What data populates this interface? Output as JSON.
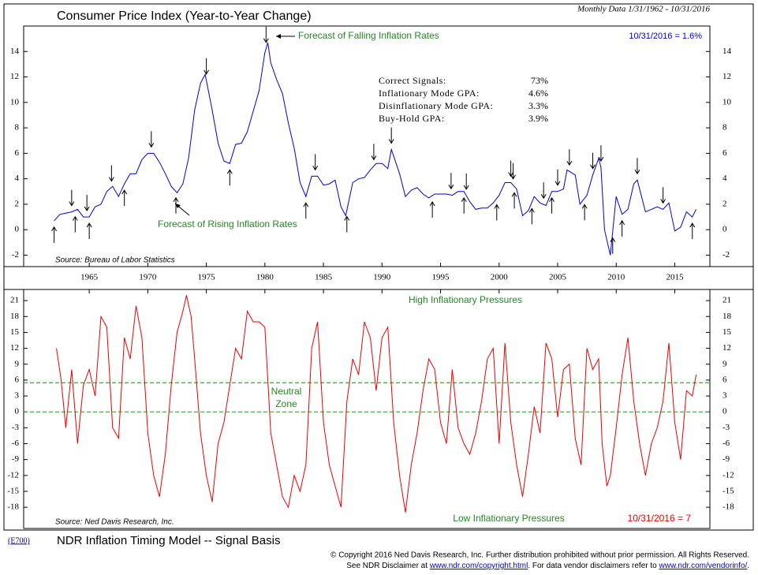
{
  "chart_data": [
    {
      "type": "line",
      "title": "Consumer Price Index (Year-to-Year Change)",
      "subtitle": "Monthly Data 1/31/1962 - 10/31/2016",
      "latest_label": "10/31/2016 = 1.6%",
      "annotation_falling": "Forecast of Falling Inflation Rates",
      "annotation_rising": "Forecast of Rising Inflation Rates",
      "source": "Source: Bureau of Labor Statistics",
      "stats_labels": [
        "Correct Signals:",
        "Inflationary Mode GPA:",
        "Disinflationary Mode GPA:",
        "Buy-Hold GPA:"
      ],
      "stats_values": [
        73,
        4.6,
        3.3,
        3.9
      ],
      "stats_value_labels": [
        "73%",
        "4.6%",
        "3.3%",
        "3.9%"
      ],
      "color": "#0000dd",
      "xlim": [
        1959.4,
        2018
      ],
      "xticks": [
        1965,
        1970,
        1975,
        1980,
        1985,
        1990,
        1995,
        2000,
        2005,
        2010,
        2015
      ],
      "ylim": [
        -2.9,
        16
      ],
      "yticks": [
        14,
        12,
        10,
        8,
        6,
        4,
        2,
        0,
        -2
      ],
      "x": [
        1962.0,
        1962.5,
        1963,
        1963.5,
        1964,
        1964.5,
        1965,
        1965.5,
        1966,
        1966.5,
        1967,
        1967.5,
        1968,
        1968.5,
        1969,
        1969.5,
        1970,
        1970.5,
        1971,
        1971.5,
        1972,
        1972.5,
        1973,
        1973.5,
        1974,
        1974.5,
        1974.9,
        1975.5,
        1976,
        1976.5,
        1977,
        1977.5,
        1978,
        1978.5,
        1979,
        1979.5,
        1980,
        1980.25,
        1980.5,
        1981,
        1981.5,
        1982,
        1982.5,
        1983,
        1983.5,
        1984,
        1984.5,
        1985,
        1985.5,
        1986,
        1986.5,
        1986.9,
        1987.5,
        1988,
        1988.5,
        1989,
        1989.5,
        1990,
        1990.5,
        1990.8,
        1991.5,
        1992,
        1992.5,
        1993,
        1993.5,
        1994,
        1994.5,
        1995,
        1995.5,
        1996,
        1996.5,
        1997,
        1997.5,
        1998,
        1998.5,
        1999,
        1999.5,
        2000,
        2000.5,
        2001,
        2001.5,
        2002,
        2002.5,
        2003,
        2003.5,
        2004,
        2004.5,
        2005,
        2005.5,
        2005.8,
        2006.5,
        2006.9,
        2007.5,
        2008,
        2008.5,
        2008.7,
        2009,
        2009.5,
        2010,
        2010.5,
        2011,
        2011.5,
        2011.8,
        2012.5,
        2013,
        2013.5,
        2014,
        2014.5,
        2015,
        2015.5,
        2016,
        2016.5,
        2016.83
      ],
      "values": [
        0.7,
        1.2,
        1.3,
        1.4,
        1.6,
        1.0,
        1.0,
        1.8,
        2.0,
        3.0,
        3.4,
        2.6,
        3.6,
        4.4,
        4.4,
        5.5,
        6.0,
        6.0,
        5.3,
        4.4,
        3.4,
        2.9,
        3.6,
        5.7,
        9.4,
        11.5,
        12.2,
        9.4,
        6.8,
        5.4,
        5.2,
        6.7,
        6.8,
        7.7,
        9.3,
        10.9,
        13.9,
        14.7,
        13.1,
        11.8,
        10.7,
        8.4,
        6.4,
        3.7,
        2.6,
        4.2,
        4.2,
        3.5,
        3.6,
        3.9,
        1.8,
        1.1,
        3.7,
        4.0,
        4.1,
        4.7,
        5.2,
        5.2,
        4.8,
        6.3,
        4.4,
        2.6,
        3.1,
        3.3,
        2.8,
        2.5,
        2.8,
        2.8,
        2.8,
        2.7,
        3.0,
        3.0,
        2.2,
        1.6,
        1.7,
        1.7,
        2.1,
        2.7,
        3.7,
        3.7,
        3.2,
        1.1,
        1.5,
        2.6,
        2.1,
        1.9,
        3.0,
        3.0,
        3.2,
        4.7,
        4.3,
        2.0,
        2.7,
        4.3,
        5.6,
        4.9,
        0.0,
        -2.0,
        2.6,
        1.2,
        1.6,
        3.6,
        3.9,
        1.4,
        1.6,
        1.8,
        1.6,
        2.1,
        -0.1,
        0.2,
        1.4,
        1.0,
        1.6
      ],
      "sell_signals": [
        1963.5,
        1964.8,
        1966.9,
        1970.3,
        1975.0,
        1980.1,
        1984.3,
        1989.3,
        1990.8,
        1995.9,
        1997.2,
        2001.0,
        2001.2,
        2003.8,
        2005.0,
        2006.0,
        2008.0,
        2008.7,
        2011.8,
        2014.0
      ],
      "buy_signals": [
        1962.0,
        1963.8,
        1965.0,
        1968.0,
        1972.4,
        1977.0,
        1983.5,
        1987.0,
        1994.3,
        1997.0,
        1999.8,
        2001.3,
        2002.8,
        2004.5,
        2007.3,
        2009.7,
        2010.5,
        2016.5
      ]
    },
    {
      "type": "line",
      "annotation_high": "High Inflationary Pressures",
      "annotation_neutral": [
        "Neutral",
        "Zone"
      ],
      "annotation_low": "Low Inflationary Pressures",
      "latest_label": "10/31/2016 = 7",
      "source": "Source: Ned Davis Research, Inc.",
      "color": "#ee0000",
      "zone_color": "#33aa33",
      "neutral_zone": [
        0,
        5.5
      ],
      "xlim": [
        1959.4,
        2018
      ],
      "ylim": [
        -22,
        23.1
      ],
      "yticks": [
        21,
        18,
        15,
        12,
        9,
        6,
        3,
        0,
        -3,
        -6,
        -9,
        -12,
        -15,
        -18
      ],
      "x": [
        1962.2,
        1962.6,
        1963,
        1963.5,
        1964,
        1964.5,
        1965,
        1965.5,
        1966,
        1966.5,
        1967,
        1967.5,
        1968,
        1968.5,
        1969,
        1969.5,
        1970,
        1970.5,
        1971,
        1971.5,
        1972,
        1972.5,
        1973,
        1973.3,
        1973.7,
        1974,
        1974.5,
        1975,
        1975.5,
        1976,
        1976.5,
        1977,
        1977.5,
        1978,
        1978.5,
        1979,
        1979.5,
        1980,
        1980.5,
        1981,
        1981.5,
        1982,
        1982.5,
        1983,
        1983.5,
        1984,
        1984.5,
        1985,
        1985.5,
        1986,
        1986.5,
        1987,
        1987.5,
        1988,
        1988.5,
        1989,
        1989.5,
        1990,
        1990.5,
        1991,
        1991.5,
        1992,
        1992.5,
        1993,
        1993.5,
        1994,
        1994.5,
        1995,
        1995.5,
        1996,
        1996.5,
        1997,
        1997.5,
        1998,
        1998.5,
        1999,
        1999.5,
        2000,
        2000.5,
        2001,
        2001.5,
        2002,
        2002.5,
        2003,
        2003.5,
        2004,
        2004.5,
        2005,
        2005.5,
        2006,
        2006.5,
        2007,
        2007.5,
        2008,
        2008.5,
        2008.8,
        2009.2,
        2009.5,
        2010,
        2010.5,
        2011,
        2011.5,
        2012,
        2012.5,
        2013,
        2013.5,
        2014,
        2014.5,
        2015,
        2015.5,
        2016,
        2016.5,
        2016.83
      ],
      "values": [
        12,
        6,
        -3,
        8,
        -6,
        5,
        8,
        3,
        18,
        16,
        -3,
        -5,
        14,
        10,
        20,
        14,
        -4,
        -12,
        -16,
        -8,
        5,
        15,
        19,
        22,
        18,
        10,
        -4,
        -12,
        -17,
        -6,
        -2,
        5,
        12,
        10,
        19,
        17,
        17,
        16,
        -4,
        -10,
        -16,
        -18,
        -12,
        -15,
        -10,
        12,
        17,
        -2,
        -10,
        -14,
        -18,
        2,
        10,
        7,
        17,
        14,
        4,
        14,
        16,
        -2,
        -12,
        -19,
        -10,
        -4,
        4,
        10,
        8,
        -2,
        -6,
        8,
        -3,
        -6,
        -8,
        -4,
        2,
        10,
        12,
        -6,
        13,
        -2,
        -10,
        -16,
        -8,
        1,
        -4,
        13,
        10,
        -1,
        8,
        9,
        -5,
        -10,
        12,
        8,
        10,
        -6,
        -14,
        -12,
        -3,
        7,
        14,
        2,
        -6,
        -12,
        -6,
        -3,
        2,
        13,
        -2,
        -9,
        4,
        3,
        7
      ]
    }
  ],
  "footer": {
    "code": "(E700)",
    "title": "NDR Inflation Timing Model -- Signal Basis",
    "copyright": "© Copyright 2016 Ned Davis Research, Inc.  Further distribution prohibited without prior permission.  All Rights Reserved.",
    "disclaimer": [
      "See NDR Disclaimer at ",
      "www.ndr.com/copyright.html",
      ". For data vendor disclaimers refer to ",
      "www.ndr.com/vendorinfo/",
      "."
    ]
  }
}
